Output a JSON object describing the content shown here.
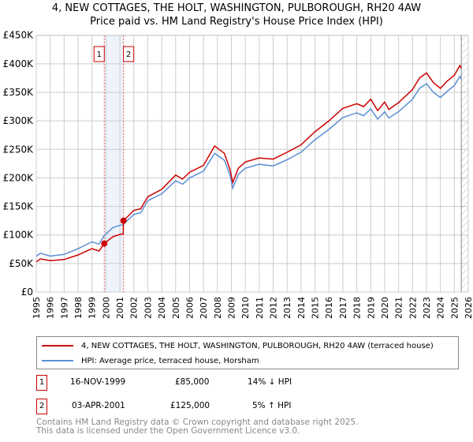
{
  "chart_data": {
    "type": "line",
    "title": "4, NEW COTTAGES, THE HOLT, WASHINGTON, PULBOROUGH, RH20 4AW",
    "subtitle": "Price paid vs. HM Land Registry's House Price Index (HPI)",
    "xlim": [
      1995,
      2026
    ],
    "ylim": [
      0,
      450000
    ],
    "x_ticks": [
      "1995",
      "1996",
      "1997",
      "1998",
      "1999",
      "2000",
      "2001",
      "2002",
      "2003",
      "2004",
      "2005",
      "2006",
      "2007",
      "2008",
      "2009",
      "2010",
      "2011",
      "2012",
      "2013",
      "2014",
      "2015",
      "2016",
      "2017",
      "2018",
      "2019",
      "2020",
      "2021",
      "2022",
      "2023",
      "2024",
      "2025",
      "2026"
    ],
    "y_ticks": [
      "£0",
      "£50K",
      "£100K",
      "£150K",
      "£200K",
      "£250K",
      "£300K",
      "£350K",
      "£400K",
      "£450K"
    ],
    "grid": true,
    "series": [
      {
        "name": "4, NEW COTTAGES, THE HOLT, WASHINGTON, PULBOROUGH, RH20 4AW (terraced house)",
        "color": "#cc0000",
        "x": [
          1995,
          1995.3,
          1996,
          1997,
          1998,
          1999,
          1999.5,
          1999.88,
          2000.5,
          2001,
          2001.24,
          2001.26,
          2002,
          2002.5,
          2003,
          2004,
          2005,
          2005.5,
          2006,
          2007,
          2007.8,
          2008.5,
          2008.9,
          2009.1,
          2009.5,
          2010,
          2011,
          2012,
          2013,
          2014,
          2015,
          2016,
          2017,
          2018,
          2018.5,
          2019,
          2019.5,
          2020,
          2020.3,
          2021,
          2022,
          2022.5,
          2023,
          2023.5,
          2024,
          2024.5,
          2025,
          2025.4,
          2025.5
        ],
        "y": [
          53000,
          58000,
          55000,
          57000,
          65000,
          76000,
          72000,
          85000,
          97000,
          101000,
          102000,
          125000,
          143000,
          146000,
          167000,
          180000,
          205000,
          198000,
          210000,
          222000,
          256000,
          243000,
          215000,
          192000,
          217000,
          228000,
          235000,
          233000,
          245000,
          258000,
          281000,
          300000,
          322000,
          330000,
          325000,
          338000,
          318000,
          333000,
          320000,
          332000,
          355000,
          375000,
          384000,
          367000,
          357000,
          370000,
          380000,
          397000,
          392000
        ]
      },
      {
        "name": "HPI: Average price, terraced house, Horsham",
        "color": "#5b8fd6",
        "x": [
          1995,
          1995.3,
          1996,
          1997,
          1998,
          1999,
          1999.5,
          1999.88,
          2000.5,
          2001,
          2001.24,
          2001.26,
          2002,
          2002.5,
          2003,
          2004,
          2005,
          2005.5,
          2006,
          2007,
          2007.8,
          2008.5,
          2008.9,
          2009.1,
          2009.5,
          2010,
          2011,
          2012,
          2013,
          2014,
          2015,
          2016,
          2017,
          2018,
          2018.5,
          2019,
          2019.5,
          2020,
          2020.3,
          2021,
          2022,
          2022.5,
          2023,
          2023.5,
          2024,
          2024.5,
          2025,
          2025.4,
          2025.5
        ],
        "y": [
          63000,
          68000,
          63000,
          66000,
          76000,
          88000,
          84000,
          99000,
          113000,
          117000,
          118000,
          119000,
          136000,
          139000,
          160000,
          172000,
          195000,
          189000,
          200000,
          212000,
          243000,
          231000,
          205000,
          182000,
          206000,
          217000,
          224000,
          221000,
          232000,
          245000,
          267000,
          285000,
          306000,
          314000,
          309000,
          321000,
          303000,
          316000,
          305000,
          316000,
          338000,
          357000,
          365000,
          350000,
          341000,
          352000,
          362000,
          378000,
          373000
        ]
      }
    ],
    "markers": [
      {
        "label": "1",
        "x": 1999.88,
        "y": 85000
      },
      {
        "label": "2",
        "x": 2001.26,
        "y": 125000
      }
    ],
    "shaded_range": [
      1999.88,
      2001.26
    ],
    "future_hatch_from": 2025.5
  },
  "legend": {
    "items": [
      {
        "label": "4, NEW COTTAGES, THE HOLT, WASHINGTON, PULBOROUGH, RH20 4AW (terraced house)",
        "color": "#cc0000"
      },
      {
        "label": "HPI: Average price, terraced house, Horsham",
        "color": "#5b8fd6"
      }
    ]
  },
  "transactions": [
    {
      "num": "1",
      "date": "16-NOV-1999",
      "price": "£85,000",
      "hpi": "14% ↓ HPI"
    },
    {
      "num": "2",
      "date": "03-APR-2001",
      "price": "£125,000",
      "hpi": "5% ↑ HPI"
    }
  ],
  "footer": {
    "line1": "Contains HM Land Registry data © Crown copyright and database right 2025.",
    "line2": "This data is licensed under the Open Government Licence v3.0."
  }
}
